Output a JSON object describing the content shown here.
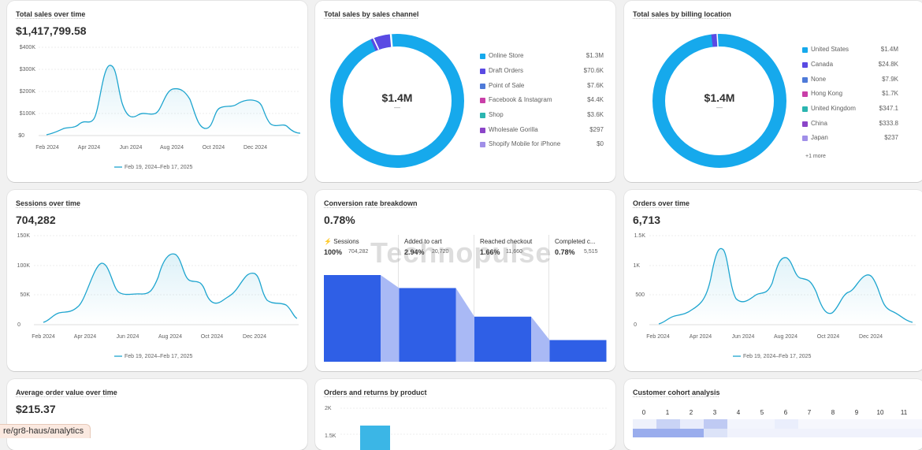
{
  "url": "re/gr8-haus/analytics",
  "watermark": "Technopulse",
  "cards": {
    "total_sales": {
      "title": "Total sales over time",
      "value": "$1,417,799.58",
      "legend": "Feb 19, 2024–Feb 17, 2025",
      "yticks": [
        "$400K",
        "$300K",
        "$200K",
        "$100K",
        "$0"
      ],
      "xticks": [
        "Feb 2024",
        "Apr 2024",
        "Jun 2024",
        "Aug 2024",
        "Oct 2024",
        "Dec 2024"
      ]
    },
    "sales_channel": {
      "title": "Total sales by sales channel",
      "center": "$1.4M",
      "center_sub": "—",
      "items": [
        {
          "label": "Online Store",
          "value": "$1.3M",
          "color": "#16a9ec"
        },
        {
          "label": "Draft Orders",
          "value": "$70.6K",
          "color": "#5a4ae3"
        },
        {
          "label": "Point of Sale",
          "value": "$7.6K",
          "color": "#4e7ad8"
        },
        {
          "label": "Facebook & Instagram",
          "value": "$4.4K",
          "color": "#c93fa8"
        },
        {
          "label": "Shop",
          "value": "$3.6K",
          "color": "#2bb5b0"
        },
        {
          "label": "Wholesale Gorilla",
          "value": "$297",
          "color": "#8b45c8"
        },
        {
          "label": "Shopify Mobile for iPhone",
          "value": "$0",
          "color": "#a08fe8"
        }
      ]
    },
    "billing_location": {
      "title": "Total sales by billing location",
      "center": "$1.4M",
      "center_sub": "—",
      "items": [
        {
          "label": "United States",
          "value": "$1.4M",
          "color": "#16a9ec"
        },
        {
          "label": "Canada",
          "value": "$24.8K",
          "color": "#5a4ae3"
        },
        {
          "label": "None",
          "value": "$7.9K",
          "color": "#4e7ad8"
        },
        {
          "label": "Hong Kong",
          "value": "$1.7K",
          "color": "#c93fa8"
        },
        {
          "label": "United Kingdom",
          "value": "$347.1",
          "color": "#2bb5b0"
        },
        {
          "label": "China",
          "value": "$333.8",
          "color": "#8b45c8"
        },
        {
          "label": "Japan",
          "value": "$237",
          "color": "#a08fe8"
        }
      ],
      "more": "+1 more"
    },
    "sessions": {
      "title": "Sessions over time",
      "value": "704,282",
      "legend": "Feb 19, 2024–Feb 17, 2025",
      "yticks": [
        "150K",
        "100K",
        "50K",
        "0"
      ],
      "xticks": [
        "Feb 2024",
        "Apr 2024",
        "Jun 2024",
        "Aug 2024",
        "Oct 2024",
        "Dec 2024"
      ]
    },
    "conversion": {
      "title": "Conversion rate breakdown",
      "value": "0.78%",
      "steps": [
        {
          "label": "Sessions",
          "pct": "100%",
          "count": "704,282",
          "fill": 1.0
        },
        {
          "label": "Added to cart",
          "pct": "2.94%",
          "count": "20,720",
          "fill": 0.85
        },
        {
          "label": "Reached checkout",
          "pct": "1.66%",
          "count": "11,660",
          "fill": 0.52
        },
        {
          "label": "Completed c...",
          "pct": "0.78%",
          "count": "5,515",
          "fill": 0.25
        }
      ]
    },
    "orders": {
      "title": "Orders over time",
      "value": "6,713",
      "legend": "Feb 19, 2024–Feb 17, 2025",
      "yticks": [
        "1.5K",
        "1K",
        "500",
        "0"
      ],
      "xticks": [
        "Feb 2024",
        "Apr 2024",
        "Jun 2024",
        "Aug 2024",
        "Oct 2024",
        "Dec 2024"
      ]
    },
    "aov": {
      "title": "Average order value over time",
      "value": "$215.37"
    },
    "orders_returns": {
      "title": "Orders and returns by product",
      "yticks": [
        "2K",
        "1.5K"
      ]
    },
    "cohort": {
      "title": "Customer cohort analysis",
      "columns": [
        "0",
        "1",
        "2",
        "3",
        "4",
        "5",
        "6",
        "7",
        "8",
        "9",
        "10",
        "11"
      ]
    }
  },
  "colors": {
    "accent": "#1ea5cf",
    "funnel": "#2f5fe6",
    "funnel_light": "#a9b9f5"
  }
}
